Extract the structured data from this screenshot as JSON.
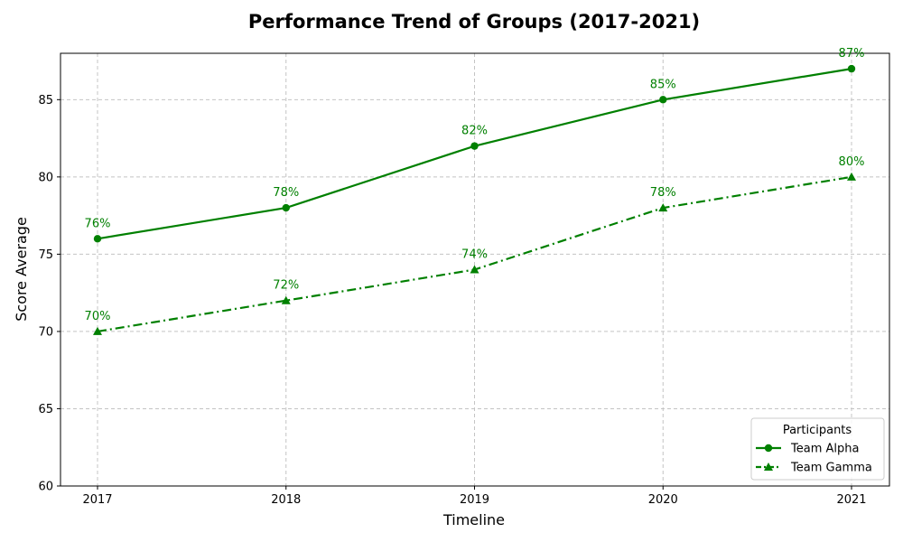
{
  "chart_data": {
    "type": "line",
    "title": "Performance Trend of Groups (2017-2021)",
    "xlabel": "Timeline",
    "ylabel": "Score Average",
    "x": [
      "2017",
      "2018",
      "2019",
      "2020",
      "2021"
    ],
    "ylim": [
      60,
      88
    ],
    "yticks": [
      60,
      65,
      70,
      75,
      80,
      85
    ],
    "grid": true,
    "legend": {
      "title": "Participants",
      "placement": "bottom-right"
    },
    "series": [
      {
        "name": "Team Alpha",
        "values": [
          76,
          78,
          82,
          85,
          87
        ],
        "labels": [
          "76%",
          "78%",
          "82%",
          "85%",
          "87%"
        ],
        "color": "#008000",
        "line_style": "solid",
        "marker": "circle"
      },
      {
        "name": "Team Gamma",
        "values": [
          70,
          72,
          74,
          78,
          80
        ],
        "labels": [
          "70%",
          "72%",
          "74%",
          "78%",
          "80%"
        ],
        "color": "#008000",
        "line_style": "dash-dot",
        "marker": "triangle"
      }
    ]
  }
}
